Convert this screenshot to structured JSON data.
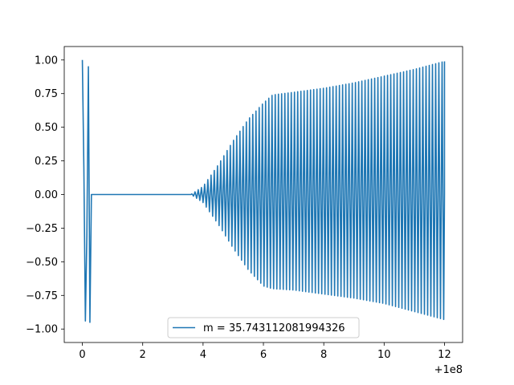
{
  "chart_data": {
    "type": "line",
    "title": "",
    "xlabel": "",
    "ylabel": "",
    "xlim": [
      -0.6,
      12.6
    ],
    "ylim": [
      -1.1,
      1.1
    ],
    "x_ticks": [
      0,
      2,
      4,
      6,
      8,
      10,
      12
    ],
    "x_tick_labels": [
      "0",
      "2",
      "4",
      "6",
      "8",
      "10",
      "12"
    ],
    "x_offset_label": "+1e8",
    "y_ticks": [
      -1.0,
      -0.75,
      -0.5,
      -0.25,
      0.0,
      0.25,
      0.5,
      0.75,
      1.0
    ],
    "y_tick_labels": [
      "−1.00",
      "−0.75",
      "−0.50",
      "−0.25",
      "0.00",
      "0.25",
      "0.50",
      "0.75",
      "1.00"
    ],
    "grid": false,
    "legend": {
      "placement": "lower-center",
      "entries": [
        "m = 35.743112081994326"
      ]
    },
    "series": [
      {
        "name": "m = 35.743112081994326",
        "color": "#1f77b4",
        "description_points": {
          "segments": [
            {
              "x": [
                0.0,
                0.05,
                0.1,
                0.15,
                0.2
              ],
              "y": [
                1.0,
                0.2,
                -0.94,
                -0.3,
                0.95
              ]
            },
            {
              "x": [
                0.2,
                0.25,
                0.3
              ],
              "y": [
                0.95,
                -0.95,
                0.0
              ]
            }
          ],
          "flat_zero_range": [
            0.3,
            3.6
          ],
          "oscillation": {
            "start": 3.6,
            "end": 12.0,
            "cycles": 79,
            "envelope": {
              "x": [
                3.6,
                4.0,
                4.5,
                5.0,
                5.5,
                6.0,
                6.3,
                7.0,
                8.0,
                9.0,
                10.0,
                11.0,
                12.0
              ],
              "upper": [
                0.0,
                0.06,
                0.22,
                0.4,
                0.56,
                0.68,
                0.74,
                0.76,
                0.79,
                0.83,
                0.88,
                0.93,
                0.99
              ],
              "lower": [
                0.0,
                -0.06,
                -0.22,
                -0.4,
                -0.56,
                -0.68,
                -0.7,
                -0.71,
                -0.74,
                -0.77,
                -0.81,
                -0.87,
                -0.93
              ]
            }
          }
        }
      }
    ]
  }
}
